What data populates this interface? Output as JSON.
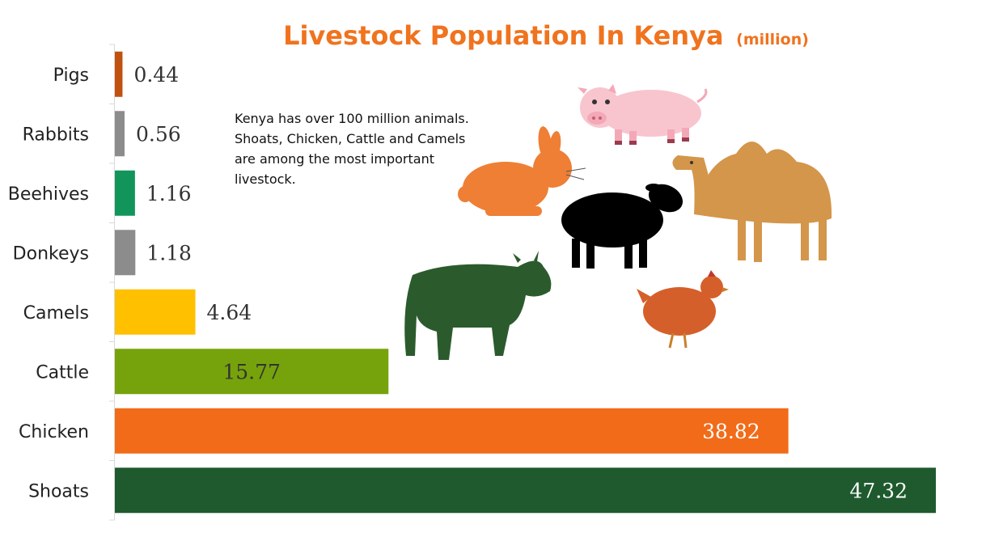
{
  "chart_data": {
    "type": "bar",
    "orientation": "horizontal",
    "title": "Livestock Population In Kenya",
    "title_unit": "(million)",
    "categories": [
      "Pigs",
      "Rabbits",
      "Beehives",
      "Donkeys",
      "Camels",
      "Cattle",
      "Chicken",
      "Shoats"
    ],
    "values": [
      0.44,
      0.56,
      1.16,
      1.18,
      4.64,
      15.77,
      38.82,
      47.32
    ],
    "value_labels": [
      "0.44",
      "0.56",
      "1.16",
      "1.18",
      "4.64",
      "15.77",
      "38.82",
      "47.32"
    ],
    "colors": [
      "#C0510E",
      "#8C8C8C",
      "#12955B",
      "#8C8C8C",
      "#FFC000",
      "#76A30B",
      "#F26B18",
      "#1E5A2E"
    ],
    "xlim": [
      0,
      47.32
    ],
    "grid": false,
    "legend": "none"
  },
  "annotation": "Kenya has over 100 million animals. Shoats, Chicken, Cattle and Camels are among the most important livestock.",
  "title_color": "#F0731E",
  "illustrations": {
    "pig": "pig-icon",
    "rabbit": "rabbit-icon",
    "sheep": "sheep-icon",
    "camel": "camel-icon",
    "cow": "cow-icon",
    "chicken": "chicken-icon"
  }
}
